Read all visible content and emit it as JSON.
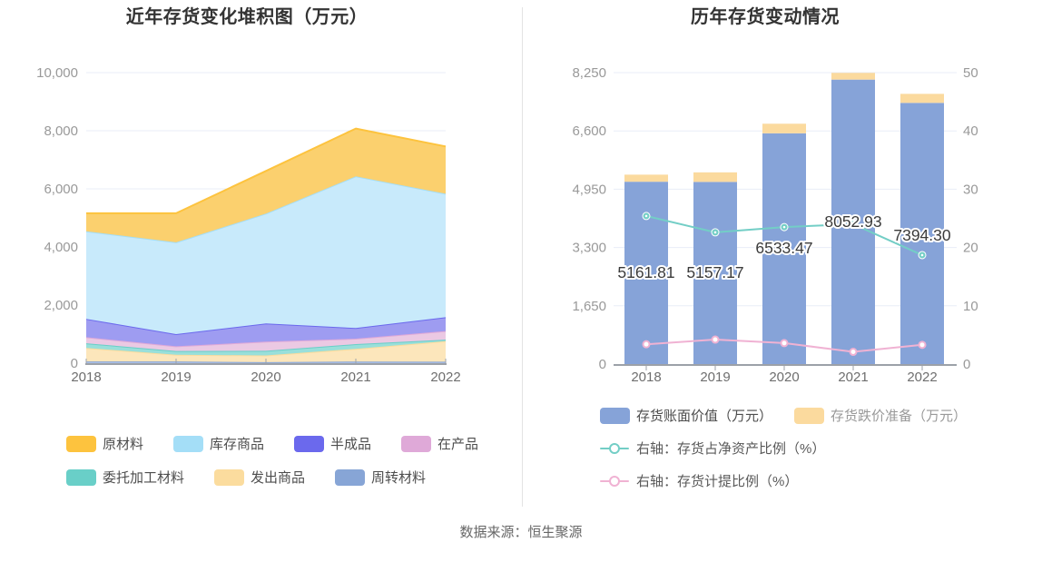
{
  "page": {
    "caption": "数据来源：恒生聚源"
  },
  "chart_data": [
    {
      "id": "inventory-stacked-area",
      "type": "area",
      "title": "近年存货变化堆积图（万元）",
      "unit": "万元",
      "categories": [
        "2018",
        "2019",
        "2020",
        "2021",
        "2022"
      ],
      "stacked": true,
      "stack_order": "reverse-legend-order-bottom-to-top",
      "series": [
        {
          "name": "原材料",
          "line_color": "#FDC33E",
          "area_color": "#FBD06E",
          "values": [
            620,
            1000,
            1465,
            1645,
            1630
          ]
        },
        {
          "name": "库存商品",
          "line_color": "#A4DEF7",
          "area_color": "#C8EAFB",
          "values": [
            3015,
            3160,
            3780,
            5220,
            4250
          ]
        },
        {
          "name": "半成品",
          "line_color": "#6B69ED",
          "area_color": "#9E9CF1",
          "values": [
            630,
            420,
            630,
            365,
            475
          ]
        },
        {
          "name": "在产品",
          "line_color": "#DFA9D8",
          "area_color": "#EBC9E3",
          "values": [
            210,
            160,
            315,
            190,
            295
          ]
        },
        {
          "name": "委托加工材料",
          "line_color": "#69CFC8",
          "area_color": "#99DFDA",
          "values": [
            160,
            130,
            160,
            160,
            55
          ]
        },
        {
          "name": "发出商品",
          "line_color": "#FBDC9E",
          "area_color": "#FCE6BB",
          "values": [
            465,
            230,
            230,
            440,
            705
          ]
        },
        {
          "name": "周转材料",
          "line_color": "#87A5D6",
          "area_color": "#B1C4E8",
          "values": [
            60,
            60,
            35,
            55,
            50
          ]
        }
      ],
      "y_axis": {
        "lim": [
          0,
          10000
        ],
        "ticks": [
          0,
          2000,
          4000,
          6000,
          8000,
          10000
        ],
        "tick_labels": [
          "0",
          "2,000",
          "4,000",
          "6,000",
          "8,000",
          "10,000"
        ]
      },
      "grid": true,
      "legend_position": "bottom-left"
    },
    {
      "id": "inventory-change-bars",
      "type": "bar",
      "title": "历年存货变动情况",
      "categories": [
        "2018",
        "2019",
        "2020",
        "2021",
        "2022"
      ],
      "series": [
        {
          "name": "存货账面价值（万元）",
          "type": "bar",
          "axis": "left",
          "color": "#86A3D8",
          "values": [
            5161.81,
            5157.17,
            6533.47,
            8052.93,
            7394.3
          ],
          "value_labels": [
            "5161.81",
            "5157.17",
            "6533.47",
            "8052.93",
            "7394.30"
          ]
        },
        {
          "name": "存货跌价准备（万元）",
          "type": "bar",
          "axis": "left",
          "color": "#FBDA9E",
          "values": [
            200,
            270,
            270,
            190,
            255
          ]
        },
        {
          "name": "右轴：存货占净资产比例（%）",
          "type": "line",
          "axis": "right",
          "color": "#73CEC6",
          "values": [
            25.4,
            22.6,
            23.5,
            24.0,
            18.7
          ]
        },
        {
          "name": "右轴：存货计提比例（%）",
          "type": "line",
          "axis": "right",
          "color": "#F0B2D3",
          "values": [
            3.4,
            4.2,
            3.6,
            2.1,
            3.3
          ]
        }
      ],
      "left_axis": {
        "lim": [
          0,
          8250
        ],
        "ticks": [
          0,
          1650,
          3300,
          4950,
          6600,
          8250
        ],
        "tick_labels": [
          "0",
          "1,650",
          "3,300",
          "4,950",
          "6,600",
          "8,250"
        ]
      },
      "right_axis": {
        "lim": [
          0,
          50
        ],
        "ticks": [
          0,
          10,
          20,
          30,
          40,
          50
        ],
        "tick_labels": [
          "0",
          "10",
          "20",
          "30",
          "40",
          "50"
        ]
      },
      "grid": true,
      "legend_position": "bottom-left"
    }
  ],
  "style": {
    "title_color": "#333333",
    "y_label_color": "#999999",
    "x_label_color": "#6e6e6e",
    "grid_color": "#E8EDF7",
    "axis_line_color": "#9CA1A8",
    "value_label_color": "#3B3B3B",
    "legend_text_color": "#4D4D4D",
    "legend_text_muted": "#999999",
    "caption_color": "#666666",
    "divider_color": "#E3E3E3"
  }
}
